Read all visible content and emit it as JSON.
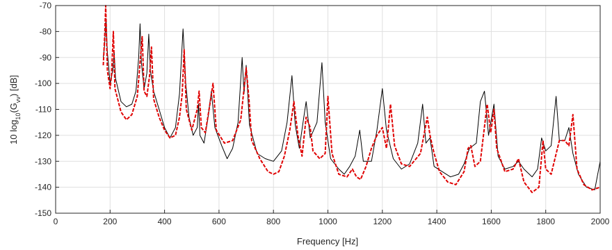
{
  "chart_data": {
    "type": "line",
    "xlabel": "Frequency [Hz]",
    "ylabel_parts": [
      "10 log",
      "10",
      "(G",
      "vv",
      ") [dB]"
    ],
    "xlim": [
      0,
      2000
    ],
    "xticks": [
      0,
      200,
      400,
      600,
      800,
      1000,
      1200,
      1400,
      1600,
      1800,
      2000
    ],
    "ylim": [
      -150,
      -70
    ],
    "yticks": [
      -150,
      -140,
      -130,
      -120,
      -110,
      -100,
      -90,
      -80,
      -70
    ],
    "grid": true,
    "series": [
      {
        "color": "#000000",
        "dash": "solid",
        "x": [
          175,
          180,
          185,
          190,
          200,
          210,
          215,
          220,
          240,
          260,
          280,
          295,
          305,
          310,
          315,
          325,
          335,
          342,
          348,
          360,
          380,
          400,
          420,
          440,
          455,
          468,
          478,
          490,
          505,
          520,
          525,
          530,
          545,
          560,
          572,
          585,
          610,
          630,
          650,
          670,
          685,
          692,
          700,
          712,
          740,
          770,
          800,
          830,
          850,
          868,
          880,
          895,
          910,
          920,
          935,
          960,
          978,
          990,
          1010,
          1040,
          1060,
          1080,
          1100,
          1117,
          1130,
          1160,
          1180,
          1200,
          1215,
          1240,
          1270,
          1300,
          1330,
          1348,
          1360,
          1375,
          1390,
          1420,
          1450,
          1480,
          1500,
          1520,
          1545,
          1560,
          1575,
          1590,
          1610,
          1625,
          1650,
          1680,
          1700,
          1720,
          1750,
          1770,
          1785,
          1800,
          1820,
          1838,
          1850,
          1870,
          1885,
          1900,
          1920,
          1950,
          1980,
          2000
        ],
        "values": [
          -90,
          -85,
          -75,
          -88,
          -100,
          -95,
          -88,
          -98,
          -107,
          -109,
          -108,
          -103,
          -90,
          -77,
          -92,
          -102,
          -96,
          -81,
          -95,
          -103,
          -110,
          -117,
          -121,
          -117,
          -104,
          -79,
          -100,
          -113,
          -120,
          -117,
          -108,
          -120,
          -123,
          -113,
          -103,
          -117,
          -124,
          -129,
          -125,
          -115,
          -90,
          -104,
          -93,
          -116,
          -127,
          -129,
          -130,
          -126,
          -115,
          -97,
          -116,
          -125,
          -114,
          -107,
          -121,
          -115,
          -92,
          -115,
          -129,
          -133,
          -135,
          -132,
          -128,
          -118,
          -130,
          -130,
          -118,
          -102,
          -118,
          -129,
          -133,
          -131,
          -123,
          -108,
          -123,
          -121,
          -132,
          -134,
          -136,
          -135,
          -131,
          -125,
          -123,
          -107,
          -103,
          -120,
          -108,
          -128,
          -133,
          -132,
          -130,
          -133,
          -136,
          -133,
          -121,
          -126,
          -124,
          -105,
          -122,
          -122,
          -117,
          -127,
          -135,
          -140,
          -141,
          -130
        ]
      },
      {
        "color": "#e00000",
        "dash": "dashed",
        "x": [
          175,
          180,
          184,
          190,
          200,
          205,
          212,
          218,
          240,
          260,
          280,
          300,
          310,
          318,
          325,
          335,
          345,
          352,
          360,
          380,
          400,
          420,
          440,
          455,
          465,
          472,
          480,
          500,
          520,
          527,
          535,
          550,
          565,
          578,
          590,
          620,
          650,
          680,
          700,
          710,
          720,
          750,
          780,
          800,
          820,
          840,
          860,
          875,
          890,
          905,
          920,
          935,
          945,
          970,
          990,
          1000,
          1015,
          1040,
          1070,
          1090,
          1105,
          1120,
          1140,
          1160,
          1180,
          1200,
          1215,
          1230,
          1245,
          1270,
          1300,
          1340,
          1365,
          1375,
          1390,
          1410,
          1440,
          1470,
          1500,
          1515,
          1525,
          1540,
          1560,
          1585,
          1598,
          1610,
          1620,
          1650,
          1680,
          1700,
          1720,
          1750,
          1775,
          1790,
          1800,
          1820,
          1850,
          1870,
          1885,
          1900,
          1915,
          1940,
          1970,
          2000
        ],
        "values": [
          -93,
          -82,
          -70,
          -95,
          -102,
          -97,
          -80,
          -102,
          -111,
          -114,
          -112,
          -105,
          -92,
          -82,
          -103,
          -105,
          -97,
          -86,
          -106,
          -113,
          -118,
          -121,
          -120,
          -113,
          -104,
          -87,
          -110,
          -118,
          -110,
          -103,
          -117,
          -119,
          -109,
          -100,
          -118,
          -123,
          -122,
          -114,
          -94,
          -106,
          -122,
          -129,
          -134,
          -135,
          -134,
          -128,
          -118,
          -107,
          -120,
          -128,
          -113,
          -117,
          -126,
          -129,
          -127,
          -105,
          -127,
          -135,
          -136,
          -133,
          -136,
          -137,
          -132,
          -125,
          -120,
          -117,
          -125,
          -108,
          -124,
          -131,
          -132,
          -127,
          -113,
          -120,
          -127,
          -134,
          -138,
          -139,
          -134,
          -125,
          -124,
          -132,
          -130,
          -108,
          -119,
          -110,
          -125,
          -134,
          -133,
          -129,
          -138,
          -142,
          -140,
          -122,
          -133,
          -135,
          -122,
          -122,
          -124,
          -112,
          -133,
          -139,
          -141,
          -140
        ]
      }
    ]
  }
}
